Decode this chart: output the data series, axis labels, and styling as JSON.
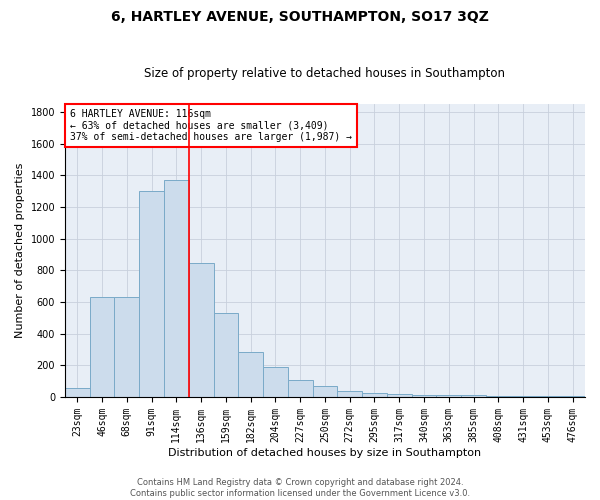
{
  "title": "6, HARTLEY AVENUE, SOUTHAMPTON, SO17 3QZ",
  "subtitle": "Size of property relative to detached houses in Southampton",
  "xlabel": "Distribution of detached houses by size in Southampton",
  "ylabel": "Number of detached properties",
  "categories": [
    "23sqm",
    "46sqm",
    "68sqm",
    "91sqm",
    "114sqm",
    "136sqm",
    "159sqm",
    "182sqm",
    "204sqm",
    "227sqm",
    "250sqm",
    "272sqm",
    "295sqm",
    "317sqm",
    "340sqm",
    "363sqm",
    "385sqm",
    "408sqm",
    "431sqm",
    "453sqm",
    "476sqm"
  ],
  "bar_heights": [
    55,
    635,
    635,
    1305,
    1370,
    845,
    530,
    285,
    190,
    110,
    70,
    38,
    25,
    18,
    10,
    10,
    10,
    5,
    5,
    5,
    5
  ],
  "bar_color": "#ccdcec",
  "bar_edge_color": "#7aaac8",
  "vline_index": 4,
  "vline_color": "red",
  "annotation_title": "6 HARTLEY AVENUE: 116sqm",
  "annotation_line1": "← 63% of detached houses are smaller (3,409)",
  "annotation_line2": "37% of semi-detached houses are larger (1,987) →",
  "annotation_box_color": "white",
  "annotation_box_edge": "red",
  "ylim": [
    0,
    1850
  ],
  "yticks": [
    0,
    200,
    400,
    600,
    800,
    1000,
    1200,
    1400,
    1600,
    1800
  ],
  "title_fontsize": 10,
  "subtitle_fontsize": 8.5,
  "ylabel_fontsize": 8,
  "xlabel_fontsize": 8,
  "tick_fontsize": 7,
  "annotation_fontsize": 7,
  "footer_fontsize": 6,
  "background_color": "#e8eef6",
  "grid_color": "#c8d0dc",
  "footer_line1": "Contains HM Land Registry data © Crown copyright and database right 2024.",
  "footer_line2": "Contains public sector information licensed under the Government Licence v3.0."
}
